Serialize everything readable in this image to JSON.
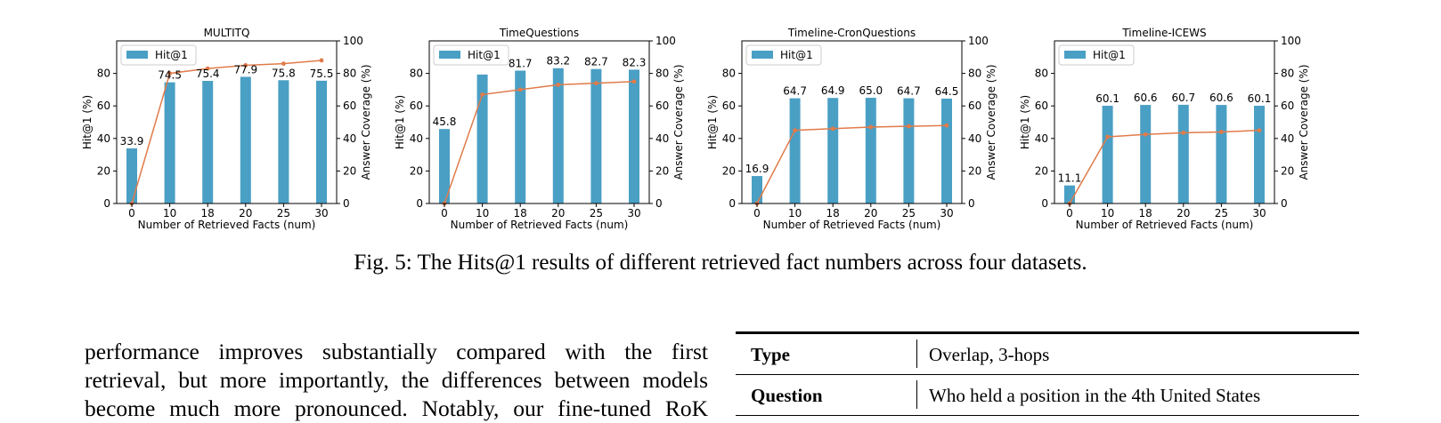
{
  "figure": {
    "caption": "Fig. 5: The Hits@1 results of different retrieved fact numbers across four datasets."
  },
  "chart_data": [
    {
      "type": "bar",
      "title": "MULTITQ",
      "categories": [
        "0",
        "10",
        "18",
        "20",
        "25",
        "30"
      ],
      "xlabel": "Number of Retrieved Facts (num)",
      "ylabel": "Hit@1 (%)",
      "y2label": "Answer Coverage (%)",
      "ylim": [
        0,
        100
      ],
      "y2lim": [
        0,
        100
      ],
      "yticks": [
        0,
        20,
        40,
        60,
        80
      ],
      "y2ticks": [
        0,
        20,
        40,
        60,
        80,
        100
      ],
      "legend": "top-left",
      "series": [
        {
          "name": "Hit@1",
          "type": "bar",
          "color": "#4a9fc4",
          "values": [
            33.9,
            74.5,
            75.4,
            77.9,
            75.8,
            75.5
          ],
          "labels": [
            "33.9",
            "74.5",
            "75.4",
            "77.9",
            "75.8",
            "75.5"
          ]
        },
        {
          "type": "line",
          "axis": "right",
          "color": "#e07b4a",
          "values": [
            0,
            80,
            83,
            85,
            86,
            88
          ]
        }
      ]
    },
    {
      "type": "bar",
      "title": "TimeQuestions",
      "categories": [
        "0",
        "10",
        "18",
        "20",
        "25",
        "30"
      ],
      "xlabel": "Number of Retrieved Facts (num)",
      "ylabel": "Hit@1 (%)",
      "y2label": "Answer Coverage (%)",
      "ylim": [
        0,
        100
      ],
      "y2lim": [
        0,
        100
      ],
      "yticks": [
        0,
        20,
        40,
        60,
        80
      ],
      "y2ticks": [
        0,
        20,
        40,
        60,
        80,
        100
      ],
      "legend": "top-left",
      "series": [
        {
          "name": "Hit@1",
          "type": "bar",
          "color": "#4a9fc4",
          "values": [
            45.8,
            79.3,
            81.7,
            83.2,
            82.7,
            82.3
          ],
          "labels": [
            "45.8",
            "",
            "81.7",
            "83.2",
            "82.7",
            "82.3"
          ]
        },
        {
          "type": "line",
          "axis": "right",
          "color": "#e07b4a",
          "values": [
            0,
            67,
            70,
            73,
            74,
            75
          ]
        }
      ]
    },
    {
      "type": "bar",
      "title": "Timeline-CronQuestions",
      "categories": [
        "0",
        "10",
        "18",
        "20",
        "25",
        "30"
      ],
      "xlabel": "Number of Retrieved Facts (num)",
      "ylabel": "Hit@1 (%)",
      "y2label": "Answer Coverage (%)",
      "ylim": [
        0,
        100
      ],
      "y2lim": [
        0,
        100
      ],
      "yticks": [
        0,
        20,
        40,
        60,
        80
      ],
      "y2ticks": [
        0,
        20,
        40,
        60,
        80,
        100
      ],
      "legend": "top-left",
      "series": [
        {
          "name": "Hit@1",
          "type": "bar",
          "color": "#4a9fc4",
          "values": [
            16.9,
            64.7,
            64.9,
            65.0,
            64.7,
            64.5
          ],
          "labels": [
            "16.9",
            "64.7",
            "64.9",
            "65.0",
            "64.7",
            "64.5"
          ]
        },
        {
          "type": "line",
          "axis": "right",
          "color": "#e07b4a",
          "values": [
            0,
            45,
            46,
            47,
            47.5,
            48
          ]
        }
      ]
    },
    {
      "type": "bar",
      "title": "Timeline-ICEWS",
      "categories": [
        "0",
        "10",
        "18",
        "20",
        "25",
        "30"
      ],
      "xlabel": "Number of Retrieved Facts (num)",
      "ylabel": "Hit@1 (%)",
      "y2label": "Answer Coverage (%)",
      "ylim": [
        0,
        100
      ],
      "y2lim": [
        0,
        100
      ],
      "yticks": [
        0,
        20,
        40,
        60,
        80
      ],
      "y2ticks": [
        0,
        20,
        40,
        60,
        80,
        100
      ],
      "legend": "top-left",
      "series": [
        {
          "name": "Hit@1",
          "type": "bar",
          "color": "#4a9fc4",
          "values": [
            11.1,
            60.1,
            60.6,
            60.7,
            60.6,
            60.1
          ],
          "labels": [
            "11.1",
            "60.1",
            "60.6",
            "60.7",
            "60.6",
            "60.1"
          ]
        },
        {
          "type": "line",
          "axis": "right",
          "color": "#e07b4a",
          "values": [
            0,
            41,
            42.5,
            43.5,
            44,
            45
          ]
        }
      ]
    }
  ],
  "body": {
    "lines": [
      "performance improves substantially compared with the first",
      "retrieval, but more importantly, the differences between models",
      "become much more pronounced. Notably, our fine-tuned RoK"
    ]
  },
  "table": {
    "rows": [
      {
        "key": "Type",
        "value": "Overlap, 3-hops"
      },
      {
        "key": "Question",
        "value": "Who held a position in the 4th United States"
      }
    ]
  }
}
